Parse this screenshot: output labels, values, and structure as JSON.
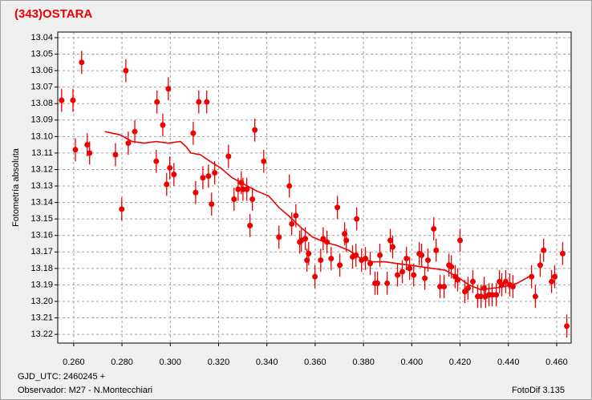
{
  "chart_data": {
    "type": "scatter",
    "title": "(343)OSTARA",
    "ylabel": "Fotometría absoluta",
    "xlabel": "GJD_UTC: 2460245 +",
    "footnote": "Observador: M27 - N.Montecchiari",
    "credit": "FotoDif 3.135",
    "color": "#ee0000",
    "error_bar": 0.007,
    "x": [
      0.255,
      0.2597,
      0.2607,
      0.2633,
      0.2656,
      0.2666,
      0.2773,
      0.2799,
      0.2816,
      0.2826,
      0.2853,
      0.2945,
      0.2942,
      0.2969,
      0.2985,
      0.2992,
      0.2998,
      0.3015,
      0.3095,
      0.3105,
      0.3118,
      0.3135,
      0.3151,
      0.3158,
      0.3171,
      0.3184,
      0.3241,
      0.3264,
      0.3281,
      0.3294,
      0.3301,
      0.3317,
      0.333,
      0.334,
      0.335,
      0.3387,
      0.345,
      0.3493,
      0.3503,
      0.352,
      0.3536,
      0.3543,
      0.3559,
      0.3566,
      0.3573,
      0.3599,
      0.3623,
      0.3633,
      0.3649,
      0.3666,
      0.3692,
      0.3702,
      0.3722,
      0.3729,
      0.3755,
      0.3769,
      0.3772,
      0.3792,
      0.3808,
      0.3828,
      0.3848,
      0.3858,
      0.3868,
      0.3898,
      0.3911,
      0.3921,
      0.3941,
      0.3961,
      0.3978,
      0.3991,
      0.4008,
      0.4031,
      0.4041,
      0.4054,
      0.4067,
      0.4091,
      0.4101,
      0.4117,
      0.4134,
      0.4154,
      0.4164,
      0.418,
      0.419,
      0.42,
      0.422,
      0.4233,
      0.4253,
      0.4273,
      0.4287,
      0.43,
      0.4306,
      0.432,
      0.4333,
      0.435,
      0.4363,
      0.4373,
      0.4389,
      0.4406,
      0.4419,
      0.4496,
      0.4512,
      0.4532,
      0.4546,
      0.4579,
      0.4592,
      0.4625,
      0.4642
    ],
    "values": [
      13.078,
      13.078,
      13.108,
      13.055,
      13.105,
      13.11,
      13.111,
      13.144,
      13.06,
      13.104,
      13.097,
      13.079,
      13.115,
      13.093,
      13.129,
      13.071,
      13.119,
      13.123,
      13.098,
      13.134,
      13.079,
      13.125,
      13.079,
      13.124,
      13.141,
      13.122,
      13.112,
      13.138,
      13.132,
      13.128,
      13.132,
      13.132,
      13.154,
      13.138,
      13.096,
      13.115,
      13.161,
      13.13,
      13.153,
      13.148,
      13.164,
      13.163,
      13.162,
      13.175,
      13.171,
      13.185,
      13.175,
      13.162,
      13.164,
      13.174,
      13.143,
      13.178,
      13.159,
      13.163,
      13.173,
      13.172,
      13.15,
      13.175,
      13.174,
      13.177,
      13.189,
      13.189,
      13.172,
      13.189,
      13.163,
      13.167,
      13.184,
      13.182,
      13.174,
      13.18,
      13.184,
      13.171,
      13.172,
      13.186,
      13.175,
      13.156,
      13.169,
      13.191,
      13.191,
      13.178,
      13.179,
      13.185,
      13.187,
      13.163,
      13.194,
      13.192,
      13.188,
      13.197,
      13.197,
      13.192,
      13.197,
      13.196,
      13.196,
      13.196,
      13.188,
      13.19,
      13.188,
      13.19,
      13.191,
      13.185,
      13.197,
      13.178,
      13.169,
      13.188,
      13.185,
      13.171,
      13.215
    ],
    "fit": {
      "color": "#ee0000",
      "x": [
        0.2729,
        0.2793,
        0.2842,
        0.2892,
        0.2942,
        0.2992,
        0.3042,
        0.3065,
        0.3085,
        0.3125,
        0.3164,
        0.3208,
        0.3257,
        0.3307,
        0.3357,
        0.3407,
        0.345,
        0.349,
        0.354,
        0.3589,
        0.3639,
        0.3689,
        0.3739,
        0.3789,
        0.3838,
        0.3888,
        0.3938,
        0.3988,
        0.4038,
        0.4087,
        0.4137,
        0.4187,
        0.4237,
        0.4287,
        0.4336,
        0.4386,
        0.4436,
        0.4486
      ],
      "values": [
        13.097,
        13.099,
        13.103,
        13.104,
        13.103,
        13.104,
        13.103,
        13.106,
        13.11,
        13.111,
        13.115,
        13.119,
        13.125,
        13.129,
        13.133,
        13.136,
        13.143,
        13.148,
        13.155,
        13.161,
        13.164,
        13.166,
        13.169,
        13.174,
        13.176,
        13.176,
        13.177,
        13.178,
        13.179,
        13.18,
        13.181,
        13.185,
        13.19,
        13.193,
        13.192,
        13.191,
        13.189,
        13.185
      ]
    },
    "xlim": [
      0.2534,
      0.466
    ],
    "ylim": [
      13.2253,
      13.0366
    ],
    "xticks": [
      {
        "value": 0.26,
        "label": "0.260"
      },
      {
        "value": 0.28,
        "label": "0.280"
      },
      {
        "value": 0.3,
        "label": "0.300"
      },
      {
        "value": 0.32,
        "label": "0.320"
      },
      {
        "value": 0.34,
        "label": "0.340"
      },
      {
        "value": 0.36,
        "label": "0.360"
      },
      {
        "value": 0.38,
        "label": "0.380"
      },
      {
        "value": 0.4,
        "label": "0.400"
      },
      {
        "value": 0.42,
        "label": "0.420"
      },
      {
        "value": 0.44,
        "label": "0.440"
      },
      {
        "value": 0.46,
        "label": "0.460"
      }
    ],
    "yticks": [
      13.04,
      13.05,
      13.06,
      13.07,
      13.08,
      13.09,
      {
        "value": 13.1,
        "label": "13.10"
      },
      13.11,
      13.12,
      13.13,
      13.14,
      13.15,
      13.16,
      13.17,
      13.18,
      13.19,
      {
        "value": 13.2,
        "label": "13.20"
      },
      13.21,
      13.22
    ],
    "grid": true
  }
}
